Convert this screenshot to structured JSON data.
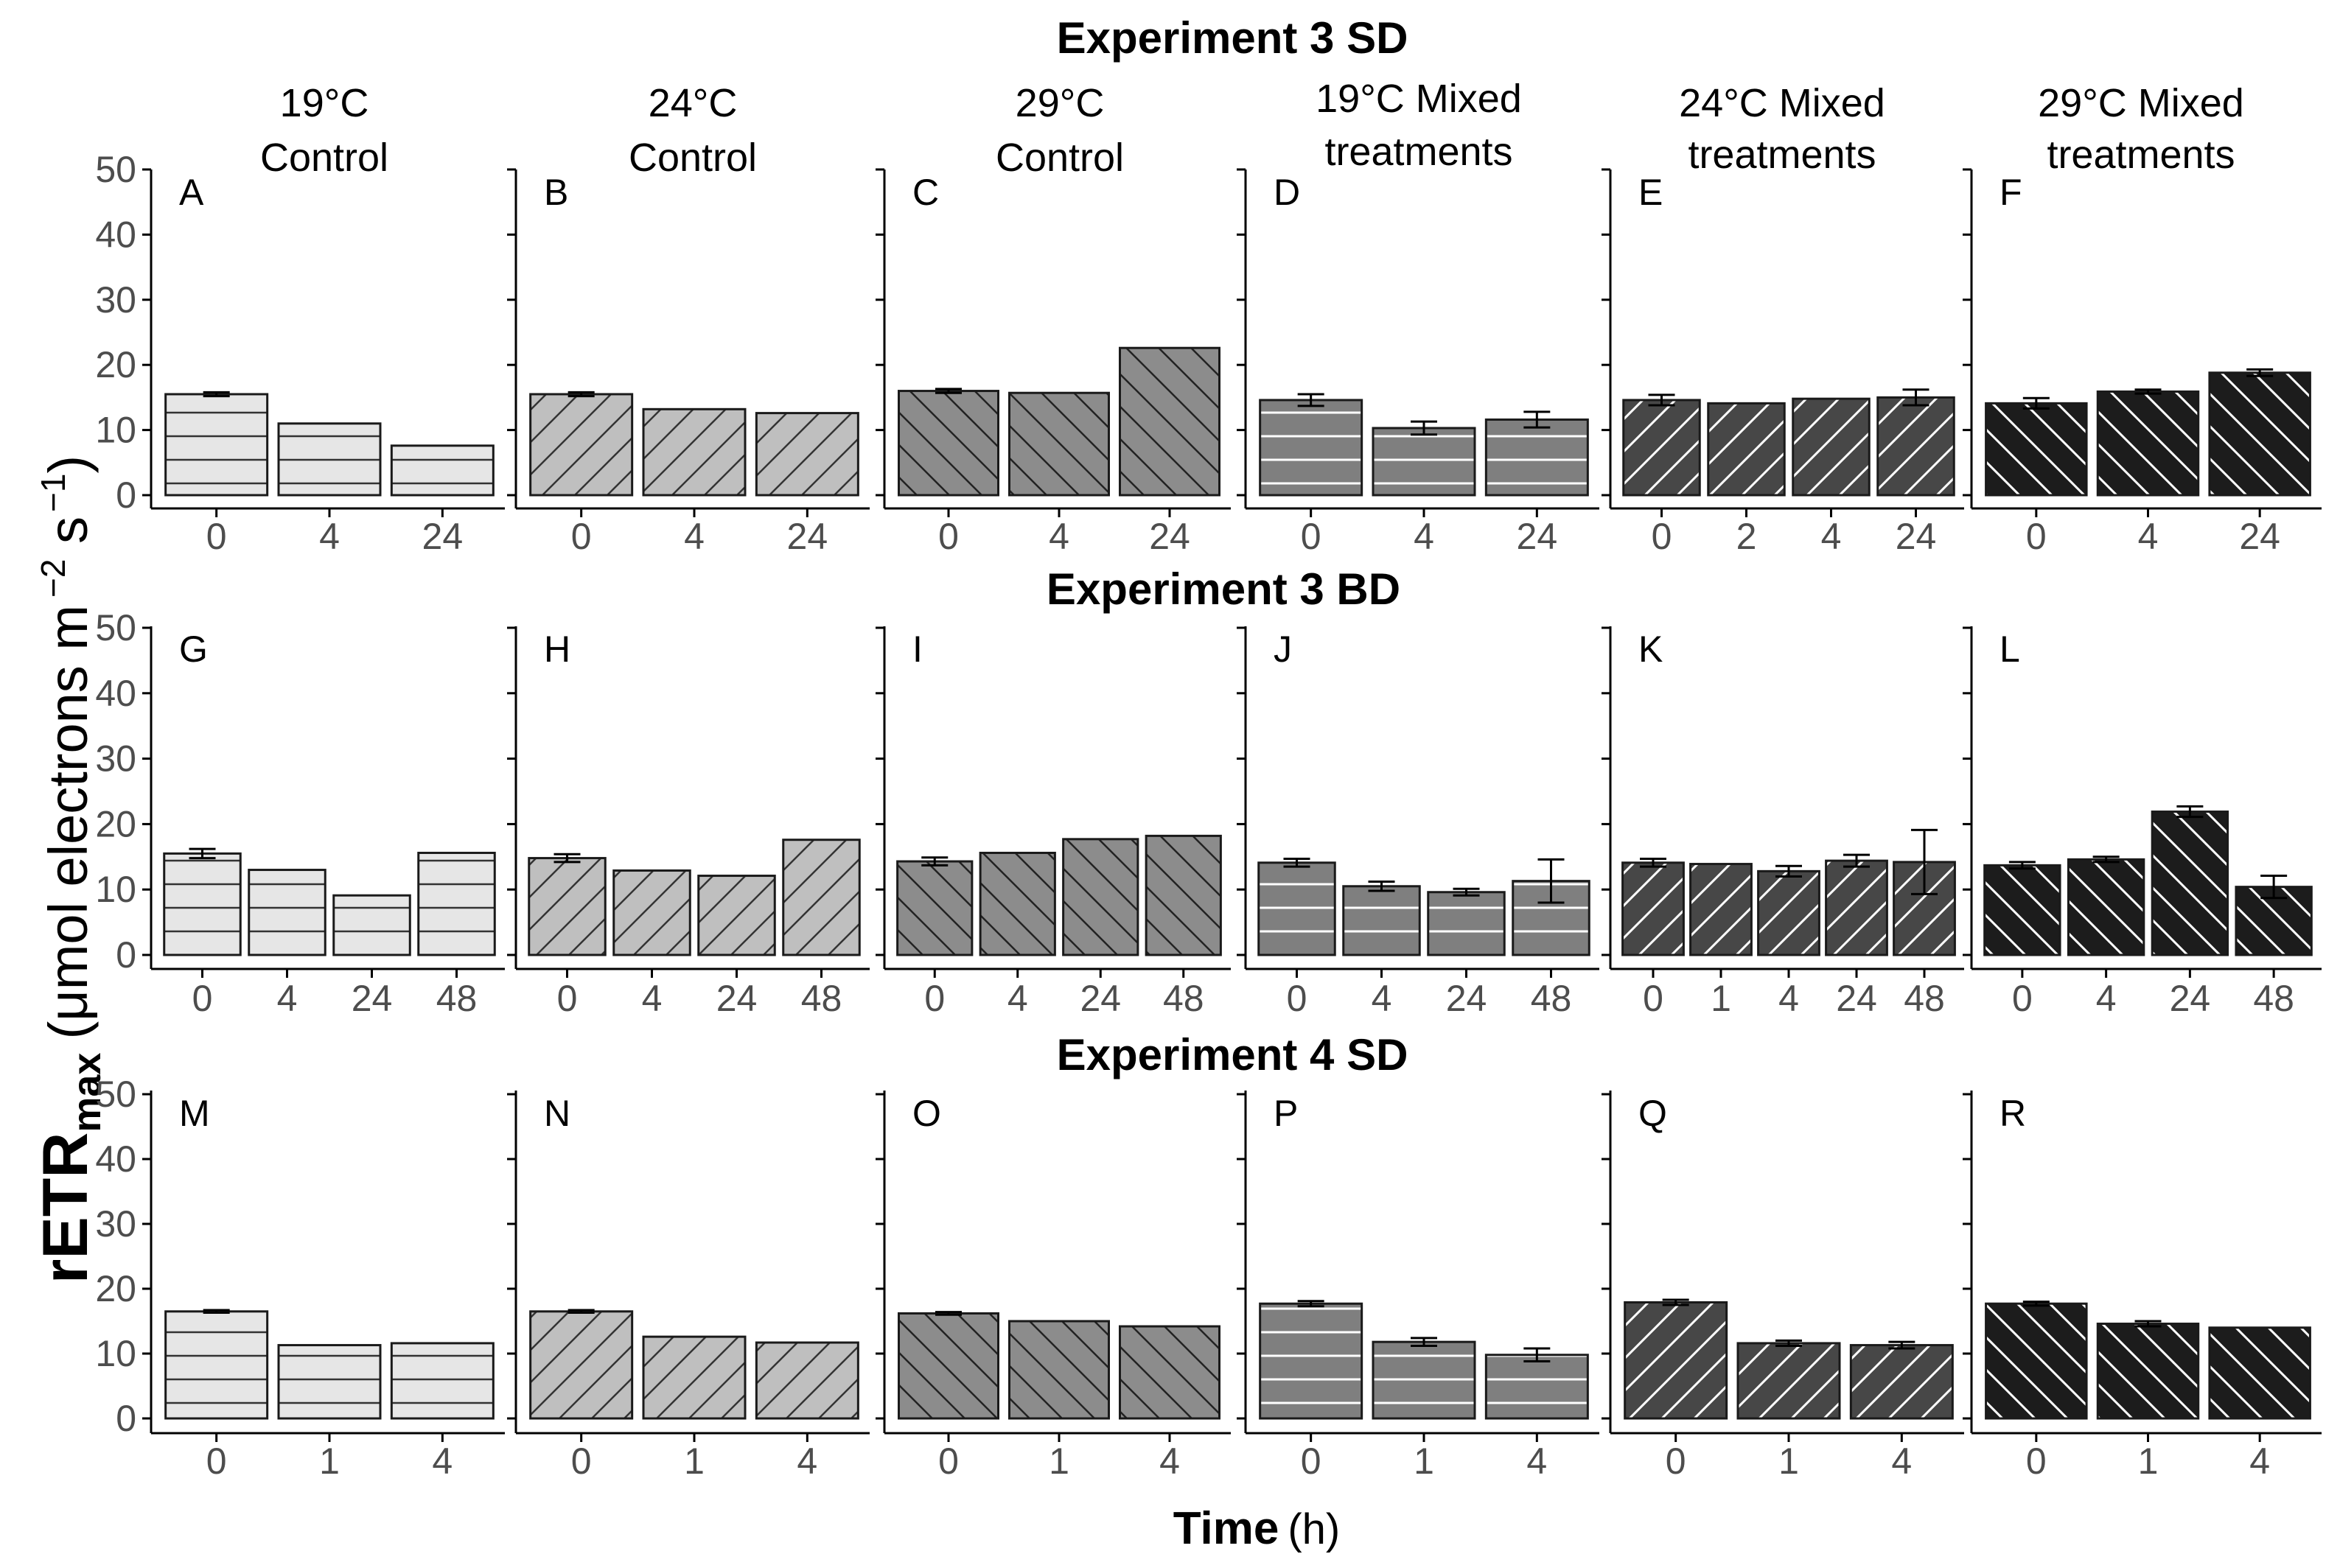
{
  "y_axis_label": {
    "main": "rETR",
    "subscript": "max",
    "units": "(μmol electrons m",
    "exp1": "−2",
    "mid": " s",
    "exp2": "−1",
    "close": ")"
  },
  "x_axis_label": {
    "main": "Time",
    "units": "(h)"
  },
  "row_titles": [
    "Experiment 3 SD",
    "Experiment 3 BD",
    "Experiment 4 SD"
  ],
  "column_titles": [
    [
      "19°C",
      "Control"
    ],
    [
      "24°C",
      "Control"
    ],
    [
      "29°C",
      "Control"
    ],
    [
      "19°C Mixed",
      "treatments"
    ],
    [
      "24°C Mixed",
      "treatments"
    ],
    [
      "29°C Mixed",
      "treatments"
    ]
  ],
  "colors": {
    "light_gray": "#e6e6e6",
    "mid_gray": "#bfbfbf",
    "dark_gray": "#8c8c8c",
    "gray_white_lines": "#7f7f7f",
    "charcoal": "#474747",
    "black": "#1c1c1c"
  },
  "chart_data": [
    {
      "type": "bar",
      "panel": "A",
      "row": "Experiment 3 SD",
      "column": "19°C Control",
      "categories": [
        "0",
        "4",
        "24"
      ],
      "values": [
        15.5,
        11,
        7.6
      ],
      "errors": [
        0.3,
        0,
        0
      ],
      "ylim": [
        0,
        50
      ],
      "yticks": [
        0,
        10,
        20,
        30,
        40,
        50
      ],
      "xlabel": "Time (h)",
      "ylabel": "rETRmax"
    },
    {
      "type": "bar",
      "panel": "B",
      "row": "Experiment 3 SD",
      "column": "24°C Control",
      "categories": [
        "0",
        "4",
        "24"
      ],
      "values": [
        15.5,
        13.2,
        12.6
      ],
      "errors": [
        0.3,
        0,
        0
      ],
      "ylim": [
        0,
        50
      ]
    },
    {
      "type": "bar",
      "panel": "C",
      "row": "Experiment 3 SD",
      "column": "29°C Control",
      "categories": [
        "0",
        "4",
        "24"
      ],
      "values": [
        16,
        15.7,
        22.6
      ],
      "errors": [
        0.3,
        0,
        0
      ],
      "ylim": [
        0,
        50
      ]
    },
    {
      "type": "bar",
      "panel": "D",
      "row": "Experiment 3 SD",
      "column": "19°C Mixed treatments",
      "categories": [
        "0",
        "4",
        "24"
      ],
      "values": [
        14.6,
        10.3,
        11.6
      ],
      "errors": [
        0.9,
        1,
        1.2
      ],
      "ylim": [
        0,
        50
      ]
    },
    {
      "type": "bar",
      "panel": "E",
      "row": "Experiment 3 SD",
      "column": "24°C Mixed treatments",
      "categories": [
        "0",
        "2",
        "4",
        "24"
      ],
      "values": [
        14.6,
        14.1,
        14.8,
        15
      ],
      "errors": [
        0.8,
        0,
        0,
        1.2
      ],
      "ylim": [
        0,
        50
      ]
    },
    {
      "type": "bar",
      "panel": "F",
      "row": "Experiment 3 SD",
      "column": "29°C Mixed treatments",
      "categories": [
        "0",
        "4",
        "24"
      ],
      "values": [
        14.1,
        15.9,
        18.8
      ],
      "errors": [
        0.8,
        0.3,
        0.5
      ],
      "ylim": [
        0,
        50
      ]
    },
    {
      "type": "bar",
      "panel": "G",
      "row": "Experiment 3 BD",
      "column": "19°C Control",
      "categories": [
        "0",
        "4",
        "24",
        "48"
      ],
      "values": [
        15.5,
        13,
        9.1,
        15.6
      ],
      "errors": [
        0.7,
        0,
        0,
        0
      ],
      "ylim": [
        0,
        50
      ]
    },
    {
      "type": "bar",
      "panel": "H",
      "row": "Experiment 3 BD",
      "column": "24°C Control",
      "categories": [
        "0",
        "4",
        "24",
        "48"
      ],
      "values": [
        14.8,
        12.9,
        12.1,
        17.6
      ],
      "errors": [
        0.6,
        0,
        0,
        0
      ],
      "ylim": [
        0,
        50
      ]
    },
    {
      "type": "bar",
      "panel": "I",
      "row": "Experiment 3 BD",
      "column": "29°C Control",
      "categories": [
        "0",
        "4",
        "24",
        "48"
      ],
      "values": [
        14.3,
        15.6,
        17.7,
        18.2
      ],
      "errors": [
        0.6,
        0,
        0,
        0
      ],
      "ylim": [
        0,
        50
      ]
    },
    {
      "type": "bar",
      "panel": "J",
      "row": "Experiment 3 BD",
      "column": "19°C Mixed treatments",
      "categories": [
        "0",
        "4",
        "24",
        "48"
      ],
      "values": [
        14.1,
        10.5,
        9.6,
        11.3
      ],
      "errors": [
        0.6,
        0.7,
        0.5,
        3.3
      ],
      "ylim": [
        0,
        50
      ]
    },
    {
      "type": "bar",
      "panel": "K",
      "row": "Experiment 3 BD",
      "column": "24°C Mixed treatments",
      "categories": [
        "0",
        "1",
        "4",
        "24",
        "48"
      ],
      "values": [
        14.1,
        13.9,
        12.8,
        14.4,
        14.2
      ],
      "errors": [
        0.6,
        0,
        0.8,
        0.9,
        4.9
      ],
      "ylim": [
        0,
        50
      ]
    },
    {
      "type": "bar",
      "panel": "L",
      "row": "Experiment 3 BD",
      "column": "29°C Mixed treatments",
      "categories": [
        "0",
        "4",
        "24",
        "48"
      ],
      "values": [
        13.7,
        14.6,
        21.9,
        10.4
      ],
      "errors": [
        0.5,
        0.4,
        0.8,
        1.7
      ],
      "ylim": [
        0,
        50
      ]
    },
    {
      "type": "bar",
      "panel": "M",
      "row": "Experiment 4 SD",
      "column": "19°C Control",
      "categories": [
        "0",
        "1",
        "4"
      ],
      "values": [
        16.5,
        11.3,
        11.6
      ],
      "errors": [
        0.2,
        0,
        0
      ],
      "ylim": [
        0,
        50
      ]
    },
    {
      "type": "bar",
      "panel": "N",
      "row": "Experiment 4 SD",
      "column": "24°C Control",
      "categories": [
        "0",
        "1",
        "4"
      ],
      "values": [
        16.5,
        12.6,
        11.7
      ],
      "errors": [
        0.2,
        0,
        0
      ],
      "ylim": [
        0,
        50
      ]
    },
    {
      "type": "bar",
      "panel": "O",
      "row": "Experiment 4 SD",
      "column": "29°C Control",
      "categories": [
        "0",
        "1",
        "4"
      ],
      "values": [
        16.2,
        15,
        14.2
      ],
      "errors": [
        0.2,
        0,
        0
      ],
      "ylim": [
        0,
        50
      ]
    },
    {
      "type": "bar",
      "panel": "P",
      "row": "Experiment 4 SD",
      "column": "19°C Mixed treatments",
      "categories": [
        "0",
        "1",
        "4"
      ],
      "values": [
        17.7,
        11.8,
        9.8
      ],
      "errors": [
        0.4,
        0.6,
        1
      ],
      "ylim": [
        0,
        50
      ]
    },
    {
      "type": "bar",
      "panel": "Q",
      "row": "Experiment 4 SD",
      "column": "24°C Mixed treatments",
      "categories": [
        "0",
        "1",
        "4"
      ],
      "values": [
        17.9,
        11.6,
        11.3
      ],
      "errors": [
        0.4,
        0.4,
        0.5
      ],
      "ylim": [
        0,
        50
      ]
    },
    {
      "type": "bar",
      "panel": "R",
      "row": "Experiment 4 SD",
      "column": "29°C Mixed treatments",
      "categories": [
        "0",
        "1",
        "4"
      ],
      "values": [
        17.7,
        14.6,
        14
      ],
      "errors": [
        0.3,
        0.4,
        0
      ],
      "ylim": [
        0,
        50
      ]
    }
  ]
}
